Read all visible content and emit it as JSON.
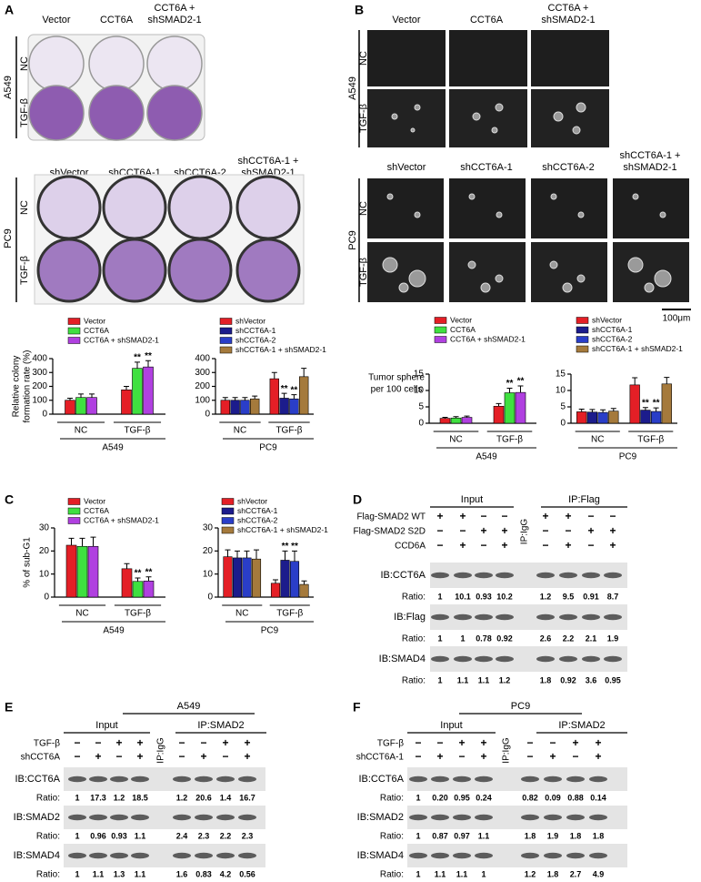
{
  "chart_data": [
    {
      "type": "bar",
      "ylabel": [
        "Relative colony",
        "formation rate (%)"
      ],
      "categories": [
        "NC",
        "TGF-β"
      ],
      "group_label": "A549",
      "ylim": [
        0,
        400
      ],
      "yticks": [
        0,
        100,
        200,
        300,
        400
      ],
      "series": [
        {
          "name": "Vector",
          "color": "#e41f26",
          "values": [
            100,
            175
          ],
          "errors": [
            15,
            25
          ],
          "marks": [
            null,
            null
          ]
        },
        {
          "name": "CCT6A",
          "color": "#3fe040",
          "values": [
            120,
            330
          ],
          "errors": [
            25,
            45
          ],
          "marks": [
            null,
            "**"
          ]
        },
        {
          "name": "CCT6A + shSMAD2-1",
          "color": "#b040e0",
          "values": [
            120,
            340
          ],
          "errors": [
            25,
            45
          ],
          "marks": [
            null,
            "**"
          ]
        }
      ]
    },
    {
      "type": "bar",
      "categories": [
        "NC",
        "TGF-β"
      ],
      "group_label": "PC9",
      "ylim": [
        0,
        400
      ],
      "yticks": [
        0,
        100,
        200,
        300,
        400
      ],
      "series": [
        {
          "name": "shVector",
          "color": "#e41f26",
          "values": [
            100,
            255
          ],
          "errors": [
            20,
            45
          ],
          "marks": [
            null,
            null
          ]
        },
        {
          "name": "shCCT6A-1",
          "color": "#1c1c8c",
          "values": [
            100,
            115
          ],
          "errors": [
            20,
            35
          ],
          "marks": [
            null,
            "**"
          ]
        },
        {
          "name": "shCCT6A-2",
          "color": "#2a3ec8",
          "values": [
            100,
            110
          ],
          "errors": [
            20,
            30
          ],
          "marks": [
            null,
            "**"
          ]
        },
        {
          "name": "shCCT6A-1 + shSMAD2-1",
          "color": "#a57a3c",
          "values": [
            110,
            270
          ],
          "errors": [
            20,
            60
          ],
          "marks": [
            null,
            null
          ]
        }
      ]
    },
    {
      "type": "bar",
      "ylabel": [
        "Tumor sphere",
        "per 100 cells"
      ],
      "categories": [
        "NC",
        "TGF-β"
      ],
      "group_label": "A549",
      "ylim": [
        0,
        15
      ],
      "yticks": [
        0,
        5,
        10,
        15
      ],
      "series": [
        {
          "name": "Vector",
          "color": "#e41f26",
          "values": [
            1.5,
            5.2
          ],
          "errors": [
            0.3,
            0.8
          ],
          "marks": [
            null,
            null
          ]
        },
        {
          "name": "CCT6A",
          "color": "#3fe040",
          "values": [
            1.6,
            9.3
          ],
          "errors": [
            0.4,
            1.4
          ],
          "marks": [
            null,
            "**"
          ]
        },
        {
          "name": "CCT6A + shSMAD2-1",
          "color": "#b040e0",
          "values": [
            1.8,
            9.4
          ],
          "errors": [
            0.4,
            2.0
          ],
          "marks": [
            null,
            "**"
          ]
        }
      ]
    },
    {
      "type": "bar",
      "categories": [
        "NC",
        "TGF-β"
      ],
      "group_label": "PC9",
      "ylim": [
        0,
        15
      ],
      "yticks": [
        0,
        5,
        10,
        15
      ],
      "series": [
        {
          "name": "shVector",
          "color": "#e41f26",
          "values": [
            3.5,
            11.7
          ],
          "errors": [
            0.8,
            2.2
          ],
          "marks": [
            null,
            null
          ]
        },
        {
          "name": "shCCT6A-1",
          "color": "#1c1c8c",
          "values": [
            3.4,
            4.0
          ],
          "errors": [
            0.8,
            0.8
          ],
          "marks": [
            null,
            "**"
          ]
        },
        {
          "name": "shCCT6A-2",
          "color": "#2a3ec8",
          "values": [
            3.3,
            3.6
          ],
          "errors": [
            0.8,
            1.1
          ],
          "marks": [
            null,
            "**"
          ]
        },
        {
          "name": "shCCT6A-1 + shSMAD2-1",
          "color": "#a57a3c",
          "values": [
            3.7,
            12.0
          ],
          "errors": [
            0.8,
            2.0
          ],
          "marks": [
            null,
            null
          ]
        }
      ]
    },
    {
      "type": "bar",
      "ylabel": [
        "% of sub-G1"
      ],
      "categories": [
        "NC",
        "TGF-β"
      ],
      "group_label": "A549",
      "ylim": [
        0,
        30
      ],
      "yticks": [
        0,
        10,
        20,
        30
      ],
      "series": [
        {
          "name": "Vector",
          "color": "#e41f26",
          "values": [
            22.5,
            12.3
          ],
          "errors": [
            3,
            2.2
          ],
          "marks": [
            null,
            null
          ]
        },
        {
          "name": "CCT6A",
          "color": "#3fe040",
          "values": [
            22,
            6.8
          ],
          "errors": [
            3.5,
            1.5
          ],
          "marks": [
            null,
            "**"
          ]
        },
        {
          "name": "CCT6A + shSMAD2-1",
          "color": "#b040e0",
          "values": [
            22,
            7
          ],
          "errors": [
            4,
            1.8
          ],
          "marks": [
            null,
            "**"
          ]
        }
      ]
    },
    {
      "type": "bar",
      "categories": [
        "NC",
        "TGF-β"
      ],
      "group_label": "PC9",
      "ylim": [
        0,
        30
      ],
      "yticks": [
        0,
        10,
        20,
        30
      ],
      "series": [
        {
          "name": "shVector",
          "color": "#e41f26",
          "values": [
            17.5,
            6
          ],
          "errors": [
            3,
            1.5
          ],
          "marks": [
            null,
            null
          ]
        },
        {
          "name": "shCCT6A-1",
          "color": "#1c1c8c",
          "values": [
            17,
            16
          ],
          "errors": [
            3,
            4
          ],
          "marks": [
            null,
            "**"
          ]
        },
        {
          "name": "shCCT6A-2",
          "color": "#2a3ec8",
          "values": [
            17,
            15.5
          ],
          "errors": [
            3,
            4.5
          ],
          "marks": [
            null,
            "**"
          ]
        },
        {
          "name": "shCCT6A-1 + shSMAD2-1",
          "color": "#a57a3c",
          "values": [
            16.5,
            5.5
          ],
          "errors": [
            4,
            1.5
          ],
          "marks": [
            null,
            null
          ]
        }
      ]
    }
  ],
  "figure": {
    "panel_labels": [
      "A",
      "B",
      "C",
      "D",
      "E",
      "F"
    ],
    "colony": {
      "a549_headers": [
        [
          "Vector"
        ],
        [
          "CCT6A"
        ],
        [
          "CCT6A +",
          "shSMAD2-1"
        ]
      ],
      "pc9_headers": [
        [
          "shVector"
        ],
        [
          "shCCT6A-1"
        ],
        [
          "shCCT6A-2"
        ],
        [
          "shCCT6A-1 +",
          "shSMAD2-1"
        ]
      ],
      "rows": [
        "NC",
        "TGF-β"
      ],
      "cell_lines": [
        "A549",
        "PC9"
      ]
    },
    "sphere": {
      "a549_headers": [
        [
          "Vector"
        ],
        [
          "CCT6A"
        ],
        [
          "CCT6A +",
          "shSMAD2-1"
        ]
      ],
      "pc9_headers": [
        [
          "shVector"
        ],
        [
          "shCCT6A-1"
        ],
        [
          "shCCT6A-2"
        ],
        [
          "shCCT6A-1 +",
          "shSMAD2-1"
        ]
      ],
      "rows": [
        "NC",
        "TGF-β"
      ],
      "cell_lines": [
        "A549",
        "PC9"
      ],
      "scale_bar": "100μm"
    },
    "blots": [
      {
        "groups": [
          "Input",
          "IP:Flag"
        ],
        "igg": "IP:IgG",
        "conditions": [
          {
            "label": "Flag-SMAD2 WT",
            "signs": [
              "+",
              "+",
              "−",
              "−",
              "+",
              "+",
              "−",
              "−"
            ]
          },
          {
            "label": "Flag-SMAD2 S2D",
            "signs": [
              "−",
              "−",
              "+",
              "+",
              "−",
              "−",
              "+",
              "+"
            ]
          },
          {
            "label": "CCD6A",
            "signs": [
              "−",
              "+",
              "−",
              "+",
              "−",
              "+",
              "−",
              "+"
            ]
          }
        ],
        "blots": [
          {
            "label": "IB:CCT6A",
            "ratio_label": "Ratio:",
            "ratios": [
              "1",
              "10.1",
              "0.93",
              "10.2",
              "1.2",
              "9.5",
              "0.91",
              "8.7"
            ]
          },
          {
            "label": "IB:Flag",
            "ratio_label": "Ratio:",
            "ratios": [
              "1",
              "1",
              "0.78",
              "0.92",
              "2.6",
              "2.2",
              "2.1",
              "1.9"
            ]
          },
          {
            "label": "IB:SMAD4",
            "ratio_label": "Ratio:",
            "ratios": [
              "1",
              "1.1",
              "1.1",
              "1.2",
              "1.8",
              "0.92",
              "3.6",
              "0.95"
            ]
          }
        ]
      },
      {
        "cell_line": "A549",
        "groups": [
          "Input",
          "IP:SMAD2"
        ],
        "igg": "IP:IgG",
        "conditions": [
          {
            "label": "TGF-β",
            "signs": [
              "−",
              "−",
              "+",
              "+",
              "−",
              "−",
              "+",
              "+"
            ]
          },
          {
            "label": "shCCT6A",
            "signs": [
              "−",
              "+",
              "−",
              "+",
              "−",
              "+",
              "−",
              "+"
            ]
          }
        ],
        "blots": [
          {
            "label": "IB:CCT6A",
            "ratio_label": "Ratio:",
            "ratios": [
              "1",
              "17.3",
              "1.2",
              "18.5",
              "1.2",
              "20.6",
              "1.4",
              "16.7"
            ]
          },
          {
            "label": "IB:SMAD2",
            "ratio_label": "Ratio:",
            "ratios": [
              "1",
              "0.96",
              "0.93",
              "1.1",
              "2.4",
              "2.3",
              "2.2",
              "2.3"
            ]
          },
          {
            "label": "IB:SMAD4",
            "ratio_label": "Ratio:",
            "ratios": [
              "1",
              "1.1",
              "1.3",
              "1.1",
              "1.6",
              "0.83",
              "4.2",
              "0.56"
            ]
          }
        ]
      },
      {
        "cell_line": "PC9",
        "groups": [
          "Input",
          "IP:SMAD2"
        ],
        "igg": "IP:IgG",
        "conditions": [
          {
            "label": "TGF-β",
            "signs": [
              "−",
              "−",
              "+",
              "+",
              "−",
              "−",
              "+",
              "+"
            ]
          },
          {
            "label": "shCCT6A-1",
            "signs": [
              "−",
              "+",
              "−",
              "+",
              "−",
              "+",
              "−",
              "+"
            ]
          }
        ],
        "blots": [
          {
            "label": "IB:CCT6A",
            "ratio_label": "Ratio:",
            "ratios": [
              "1",
              "0.20",
              "0.95",
              "0.24",
              "0.82",
              "0.09",
              "0.88",
              "0.14"
            ]
          },
          {
            "label": "IB:SMAD2",
            "ratio_label": "Ratio:",
            "ratios": [
              "1",
              "0.87",
              "0.97",
              "1.1",
              "1.8",
              "1.9",
              "1.8",
              "1.8"
            ]
          },
          {
            "label": "IB:SMAD4",
            "ratio_label": "Ratio:",
            "ratios": [
              "1",
              "1.1",
              "1.1",
              "1",
              "1.2",
              "1.8",
              "2.7",
              "4.9"
            ]
          }
        ]
      }
    ]
  }
}
